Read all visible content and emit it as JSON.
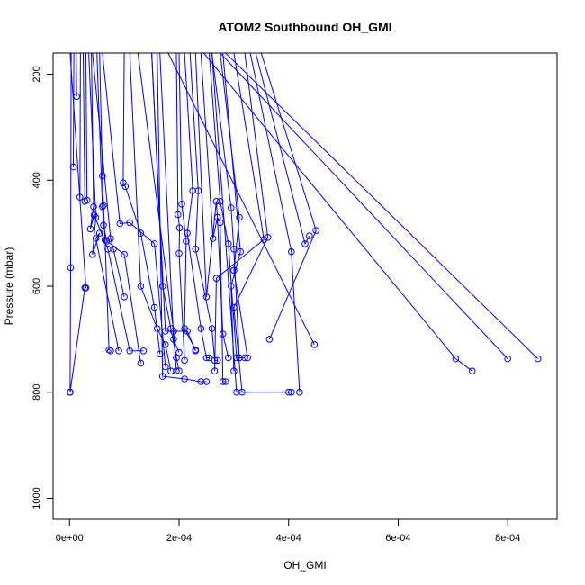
{
  "chart_data": {
    "type": "line",
    "title": "ATOM2 Southbound OH_GMI",
    "xlabel": "OH_GMI",
    "ylabel": "Pressure (mbar)",
    "xlim": [
      -3e-05,
      0.00089
    ],
    "ylim": [
      1040,
      160
    ],
    "y_reversed": true,
    "x_ticks": [
      0,
      0.0002,
      0.0004,
      0.0006,
      0.0008
    ],
    "x_tick_labels": [
      "0e+00",
      "2e-04",
      "4e-04",
      "6e-04",
      "8e-04"
    ],
    "y_ticks": [
      200,
      400,
      600,
      800,
      1000
    ],
    "y_tick_labels": [
      "200",
      "400",
      "600",
      "800",
      "1000"
    ],
    "series_color": "#0000ff",
    "marker": "open-circle",
    "series": [
      {
        "x": [
          1.2e-05,
          1.3e-05
        ],
        "y": [
          160,
          242
        ]
      },
      {
        "x": [
          8e-06,
          7e-06
        ],
        "y": [
          160,
          375
        ]
      },
      {
        "x": [
          2e-05,
          1.9e-05
        ],
        "y": [
          160,
          432
        ]
      },
      {
        "x": [
          2.5e-05,
          2.8e-05
        ],
        "y": [
          160,
          440
        ]
      },
      {
        "x": [
          3e-05,
          3.2e-05
        ],
        "y": [
          160,
          438
        ]
      },
      {
        "x": [
          4e-05,
          4.4e-05,
          3.8e-05,
          4.5e-05,
          7e-05,
          0.00011,
          0.000135
        ],
        "y": [
          160,
          450,
          492,
          466,
          530,
          722,
          722
        ]
      },
      {
        "x": [
          3.5e-05,
          4.8e-05,
          4.2e-05,
          5.5e-05,
          4.8e-05,
          9e-05
        ],
        "y": [
          160,
          470,
          540,
          500,
          510,
          722
        ]
      },
      {
        "x": [
          5.5e-05,
          6e-05,
          6.2e-05,
          6.5e-05,
          7.2e-05,
          7.5e-05
        ],
        "y": [
          160,
          392,
          448,
          513,
          720,
          722
        ]
      },
      {
        "x": [
          4.2e-05,
          7.5e-05,
          8e-05,
          0.0001
        ],
        "y": [
          160,
          510,
          530,
          620
        ]
      },
      {
        "x": [
          5e-05,
          6e-05,
          6.2e-05,
          6.8e-05,
          0.0001,
          0.00013
        ],
        "y": [
          160,
          450,
          485,
          515,
          540,
          745
        ]
      },
      {
        "x": [
          3e-06,
          2e-06,
          1e-06,
          1e-06
        ],
        "y": [
          160,
          565,
          800,
          800
        ]
      },
      {
        "x": [
          1e-06,
          3e-05,
          2.8e-05,
          1e-06
        ],
        "y": [
          160,
          603,
          603,
          800
        ]
      },
      {
        "x": [
          6e-05,
          9.2e-05,
          0.00011,
          0.000155,
          0.000175
        ],
        "y": [
          160,
          482,
          480,
          520,
          752
        ]
      },
      {
        "x": [
          0.0001,
          9.8e-05,
          0.000102,
          0.00013,
          0.000155,
          0.000165
        ],
        "y": [
          160,
          405,
          412,
          500,
          640,
          728
        ]
      },
      {
        "x": [
          0.00011,
          0.00013,
          0.00016,
          0.000175,
          0.000185
        ],
        "y": [
          160,
          600,
          680,
          710,
          760
        ]
      },
      {
        "x": [
          0.00015,
          0.00017,
          0.000185,
          0.000195,
          0.0002
        ],
        "y": [
          160,
          600,
          680,
          735,
          760
        ]
      },
      {
        "x": [
          0.000165,
          0.00019,
          0.0002
        ],
        "y": [
          160,
          700,
          725
        ]
      },
      {
        "x": [
          0.000195,
          0.000198,
          0.000201,
          0.0002,
          0.00021
        ],
        "y": [
          160,
          465,
          490,
          538,
          740
        ]
      },
      {
        "x": [
          0.0002,
          0.000205,
          0.000213,
          0.00021,
          0.00023
        ],
        "y": [
          160,
          445,
          515,
          680,
          720
        ]
      },
      {
        "x": [
          0.00021,
          0.000225,
          0.000215,
          0.00024,
          0.00025,
          0.000255
        ],
        "y": [
          160,
          420,
          500,
          680,
          735,
          735
        ]
      },
      {
        "x": [
          0.00022,
          0.000235,
          0.00023,
          0.00026,
          0.000265,
          0.00027
        ],
        "y": [
          160,
          420,
          530,
          680,
          740,
          740
        ]
      },
      {
        "x": [
          0.00023,
          0.00025,
          0.000268,
          0.00027,
          0.00028,
          0.00029
        ],
        "y": [
          160,
          620,
          440,
          470,
          690,
          735
        ]
      },
      {
        "x": [
          0.00024,
          0.000262,
          0.00027,
          0.000275,
          0.00028,
          0.000285
        ],
        "y": [
          160,
          510,
          470,
          480,
          780,
          780
        ]
      },
      {
        "x": [
          0.000255,
          0.000275,
          0.00029,
          0.000305,
          0.00031
        ],
        "y": [
          160,
          440,
          520,
          735,
          735
        ]
      },
      {
        "x": [
          0.00026,
          0.000295,
          0.0003,
          0.00031,
          0.00032
        ],
        "y": [
          160,
          452,
          530,
          735,
          735
        ]
      },
      {
        "x": [
          0.000275,
          0.00031,
          0.0003,
          0.000325
        ],
        "y": [
          160,
          470,
          570,
          735
        ]
      },
      {
        "x": [
          0.00028,
          0.000312,
          0.000295,
          0.0003
        ],
        "y": [
          160,
          535,
          600,
          760
        ]
      },
      {
        "x": [
          0.0003,
          0.000355,
          0.000268,
          0.000265
        ],
        "y": [
          160,
          512,
          585,
          760
        ]
      },
      {
        "x": [
          0.00032,
          0.000362,
          0.0003,
          0.000315
        ],
        "y": [
          160,
          508,
          640,
          800
        ]
      },
      {
        "x": [
          0.00033,
          0.000405,
          0.00042
        ],
        "y": [
          160,
          535,
          800
        ]
      },
      {
        "x": [
          0.00034,
          0.00043,
          0.000438
        ],
        "y": [
          160,
          520,
          505
        ]
      },
      {
        "x": [
          0.00035,
          0.00045,
          0.000365
        ],
        "y": [
          160,
          495,
          700
        ]
      },
      {
        "x": [
          0.00018,
          0.000447
        ],
        "y": [
          160,
          710
        ]
      },
      {
        "x": [
          0.000245,
          0.000705,
          0.000735
        ],
        "y": [
          160,
          737,
          760
        ]
      },
      {
        "x": [
          0.000275,
          0.0008
        ],
        "y": [
          160,
          737
        ]
      },
      {
        "x": [
          0.000285,
          0.000855
        ],
        "y": [
          160,
          737
        ]
      },
      {
        "x": [
          0.00016,
          0.00017,
          0.00021,
          0.00024,
          0.00025
        ],
        "y": [
          160,
          770,
          775,
          780,
          780
        ]
      },
      {
        "x": [
          0.00015,
          0.000175,
          0.00019,
          0.000195
        ],
        "y": [
          160,
          685,
          685,
          760
        ]
      },
      {
        "x": [
          0.000125,
          0.00019,
          0.000215,
          0.00023
        ],
        "y": [
          160,
          685,
          685,
          722
        ]
      },
      {
        "x": [
          0.00026,
          0.000305,
          0.0004,
          0.000405
        ],
        "y": [
          160,
          800,
          800,
          800
        ]
      }
    ]
  }
}
